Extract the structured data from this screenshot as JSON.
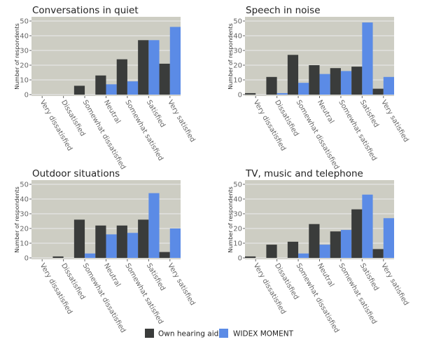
{
  "colors": {
    "own": "#3a3c3b",
    "widex": "#5b8be6",
    "panel_bg": "#cdcdc3",
    "grid": "#ececec"
  },
  "legend": {
    "position": "bottom",
    "items": [
      "Own hearing aids",
      "WIDEX MOMENT"
    ]
  },
  "chart_data": [
    {
      "type": "bar",
      "title": "Conversations in quiet",
      "ylabel": "Number of respondents",
      "xlabel": "",
      "ylim": [
        0,
        50
      ],
      "yticks": [
        0,
        10,
        20,
        30,
        40,
        50
      ],
      "grid": true,
      "categories": [
        "Very dissatisfied",
        "Dissatisfied",
        "Somewhat dissatisfied",
        "Neutral",
        "Somewhat satisfied",
        "Satisfied",
        "Very satisfied"
      ],
      "series": [
        {
          "name": "Own hearing aids",
          "values": [
            0,
            0,
            6,
            13,
            24,
            37,
            21
          ]
        },
        {
          "name": "WIDEX MOMENT",
          "values": [
            0,
            0,
            0,
            7,
            9,
            37,
            46
          ]
        }
      ]
    },
    {
      "type": "bar",
      "title": "Speech in noise",
      "ylabel": "Number of respondents",
      "xlabel": "",
      "ylim": [
        0,
        50
      ],
      "yticks": [
        0,
        10,
        20,
        30,
        40,
        50
      ],
      "grid": true,
      "categories": [
        "Very dissatisfied",
        "Dissatisfied",
        "Somewhat dissatisfied",
        "Neutral",
        "Somewhat satisfied",
        "Satisfied",
        "Very satisfied"
      ],
      "series": [
        {
          "name": "Own hearing aids",
          "values": [
            1,
            12,
            27,
            20,
            18,
            19,
            4
          ]
        },
        {
          "name": "WIDEX MOMENT",
          "values": [
            0,
            1,
            8,
            14,
            16,
            49,
            12
          ]
        }
      ]
    },
    {
      "type": "bar",
      "title": "Outdoor situations",
      "ylabel": "Number of respondents",
      "xlabel": "",
      "ylim": [
        0,
        50
      ],
      "yticks": [
        0,
        10,
        20,
        30,
        40,
        50
      ],
      "grid": true,
      "categories": [
        "Very dissatisfied",
        "Dissatisfied",
        "Somewhat dissatisfied",
        "Neutral",
        "Somewhat satisfied",
        "Satisfied",
        "Very satisfied"
      ],
      "series": [
        {
          "name": "Own hearing aids",
          "values": [
            0,
            1,
            26,
            22,
            22,
            26,
            4
          ]
        },
        {
          "name": "WIDEX MOMENT",
          "values": [
            0,
            0,
            3,
            16,
            17,
            44,
            20
          ]
        }
      ]
    },
    {
      "type": "bar",
      "title": "TV, music and telephone",
      "ylabel": "Number of respondents",
      "xlabel": "",
      "ylim": [
        0,
        50
      ],
      "yticks": [
        0,
        10,
        20,
        30,
        40,
        50
      ],
      "grid": true,
      "categories": [
        "Very dissatisfied",
        "Dissatisfied",
        "Somewhat dissatisfied",
        "Neutral",
        "Somewhat satisfied",
        "Satisfied",
        "Very satisfied"
      ],
      "series": [
        {
          "name": "Own hearing aids",
          "values": [
            1,
            9,
            11,
            23,
            18,
            33,
            6
          ]
        },
        {
          "name": "WIDEX MOMENT",
          "values": [
            0,
            0,
            3,
            9,
            19,
            43,
            27
          ]
        }
      ]
    }
  ]
}
